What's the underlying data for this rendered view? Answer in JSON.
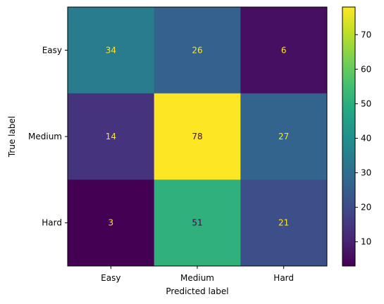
{
  "chart_data": {
    "type": "heatmap",
    "x_categories": [
      "Easy",
      "Medium",
      "Hard"
    ],
    "y_categories": [
      "Easy",
      "Medium",
      "Hard"
    ],
    "matrix": [
      [
        34,
        26,
        6
      ],
      [
        14,
        78,
        27
      ],
      [
        3,
        51,
        21
      ]
    ],
    "xlabel": "Predicted label",
    "ylabel": "True label",
    "colormap": "viridis",
    "colorbar": {
      "range": [
        3,
        78
      ],
      "ticks": [
        10,
        20,
        30,
        40,
        50,
        60,
        70
      ]
    },
    "text_colors": {
      "light": "#fde725",
      "dark": "#440154"
    },
    "grid": false
  }
}
